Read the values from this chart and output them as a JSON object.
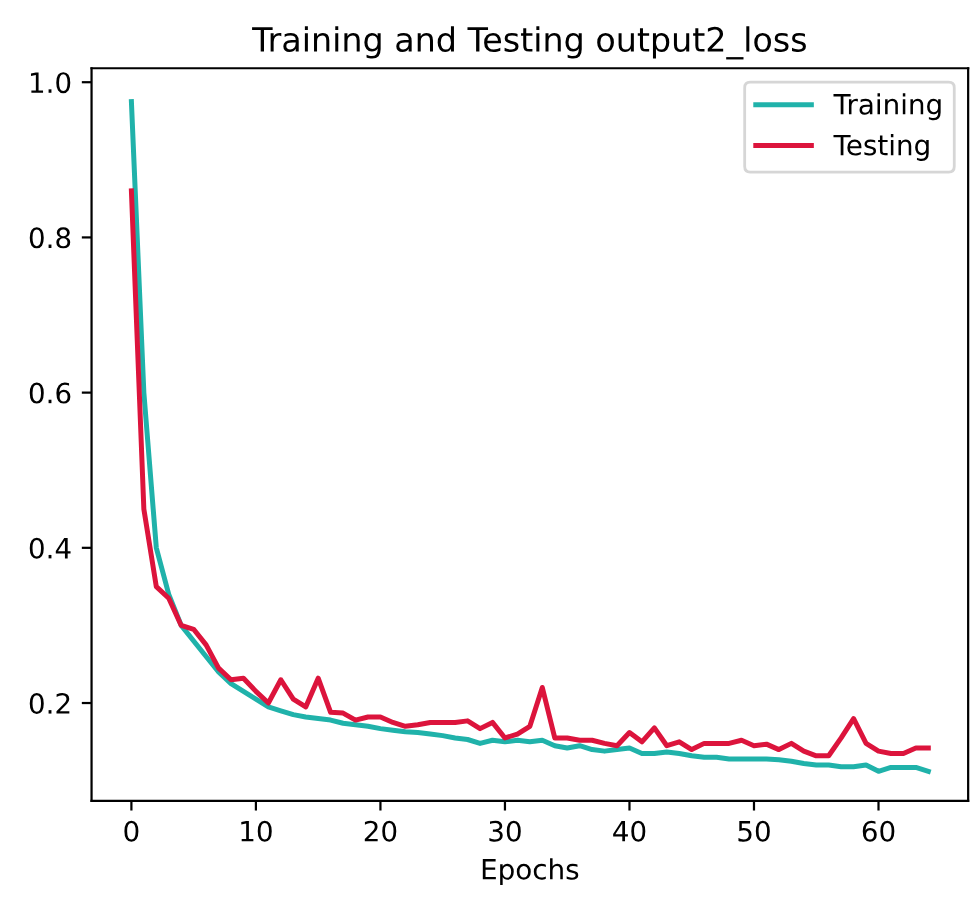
{
  "chart_data": {
    "type": "line",
    "title": "Training and Testing output2_loss",
    "xlabel": "Epochs",
    "x": [
      0,
      1,
      2,
      3,
      4,
      5,
      6,
      7,
      8,
      9,
      10,
      11,
      12,
      13,
      14,
      15,
      16,
      17,
      18,
      19,
      20,
      21,
      22,
      23,
      24,
      25,
      26,
      27,
      28,
      29,
      30,
      31,
      32,
      33,
      34,
      35,
      36,
      37,
      38,
      39,
      40,
      41,
      42,
      43,
      44,
      45,
      46,
      47,
      48,
      49,
      50,
      51,
      52,
      53,
      54,
      55,
      56,
      57,
      58,
      59,
      60,
      61,
      62,
      63,
      64
    ],
    "series": [
      {
        "name": "Training",
        "color": "#20b2aa",
        "values": [
          0.975,
          0.6,
          0.4,
          0.34,
          0.3,
          0.28,
          0.26,
          0.24,
          0.225,
          0.215,
          0.205,
          0.195,
          0.19,
          0.185,
          0.182,
          0.18,
          0.178,
          0.174,
          0.172,
          0.17,
          0.167,
          0.165,
          0.163,
          0.162,
          0.16,
          0.158,
          0.155,
          0.153,
          0.148,
          0.152,
          0.15,
          0.152,
          0.15,
          0.152,
          0.145,
          0.142,
          0.145,
          0.14,
          0.138,
          0.14,
          0.142,
          0.135,
          0.135,
          0.137,
          0.135,
          0.132,
          0.13,
          0.13,
          0.128,
          0.128,
          0.128,
          0.128,
          0.127,
          0.125,
          0.122,
          0.12,
          0.12,
          0.118,
          0.118,
          0.12,
          0.112,
          0.117,
          0.117,
          0.117,
          0.112
        ]
      },
      {
        "name": "Testing",
        "color": "#dc143c",
        "values": [
          0.86,
          0.45,
          0.35,
          0.335,
          0.3,
          0.295,
          0.275,
          0.245,
          0.23,
          0.232,
          0.215,
          0.2,
          0.23,
          0.205,
          0.195,
          0.232,
          0.188,
          0.187,
          0.178,
          0.182,
          0.182,
          0.175,
          0.17,
          0.172,
          0.175,
          0.175,
          0.175,
          0.177,
          0.167,
          0.175,
          0.155,
          0.16,
          0.17,
          0.22,
          0.155,
          0.155,
          0.152,
          0.152,
          0.148,
          0.145,
          0.162,
          0.15,
          0.168,
          0.145,
          0.15,
          0.14,
          0.148,
          0.148,
          0.148,
          0.152,
          0.145,
          0.147,
          0.14,
          0.148,
          0.138,
          0.132,
          0.132,
          0.155,
          0.18,
          0.148,
          0.138,
          0.135,
          0.135,
          0.142,
          0.142
        ]
      }
    ],
    "xlim": [
      -3.2,
      67.2
    ],
    "ylim": [
      0.074,
      1.018
    ],
    "xticks": [
      0,
      10,
      20,
      30,
      40,
      50,
      60
    ],
    "yticks": [
      {
        "value": 0.2,
        "label": "0.2"
      },
      {
        "value": 0.4,
        "label": "0.4"
      },
      {
        "value": 0.6,
        "label": "0.6"
      },
      {
        "value": 0.8,
        "label": "0.8"
      },
      {
        "value": 1.0,
        "label": "1.0"
      }
    ],
    "legend": "top right",
    "grid": false,
    "marker": "none",
    "line_style": "solid"
  }
}
